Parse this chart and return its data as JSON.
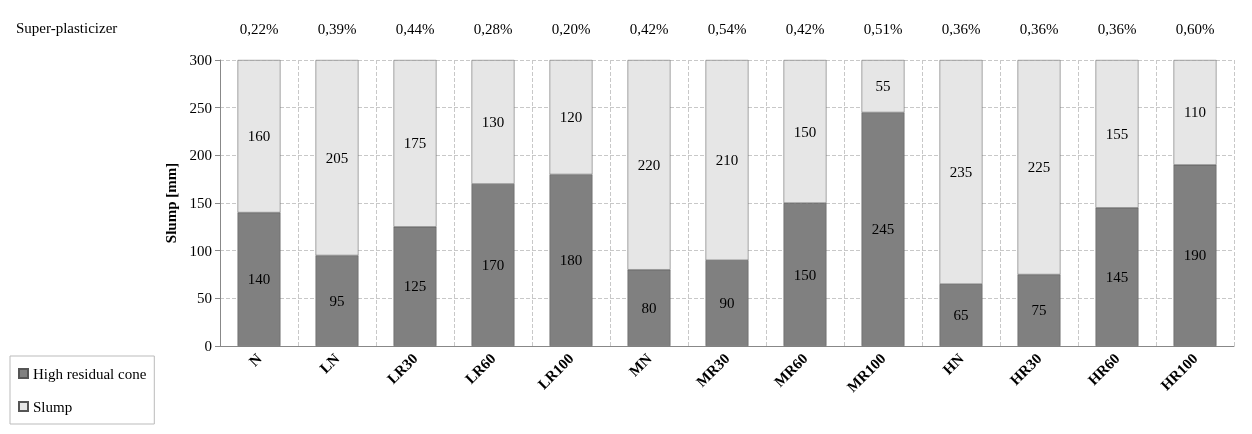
{
  "chart_data": {
    "type": "bar",
    "stacked": true,
    "ylabel": "Slump [mm]",
    "categories": [
      "N",
      "LN",
      "LR30",
      "LR60",
      "LR100",
      "MN",
      "MR30",
      "MR60",
      "MR100",
      "HN",
      "HR30",
      "HR60",
      "HR100"
    ],
    "series": [
      {
        "name": "High residual cone",
        "color": "#808080",
        "values": [
          140,
          95,
          125,
          170,
          180,
          80,
          90,
          150,
          245,
          65,
          75,
          145,
          190
        ]
      },
      {
        "name": "Slump",
        "color": "#e6e6e6",
        "values": [
          160,
          205,
          175,
          130,
          120,
          220,
          210,
          150,
          55,
          235,
          225,
          155,
          110
        ]
      }
    ],
    "ylim": [
      0,
      300
    ],
    "yticks": [
      0,
      50,
      100,
      150,
      200,
      250,
      300
    ],
    "grid": true,
    "legend": "bottom left",
    "data_labels": true,
    "annotations": [
      "Super-plasticizer",
      "0,22%",
      "0,39%",
      "0,44%",
      "0,28%",
      "0,20%",
      "0,42%",
      "0,54%",
      "0,42%",
      "0,51%",
      "0,36%",
      "0,36%",
      "0,36%",
      "0,60%"
    ]
  }
}
